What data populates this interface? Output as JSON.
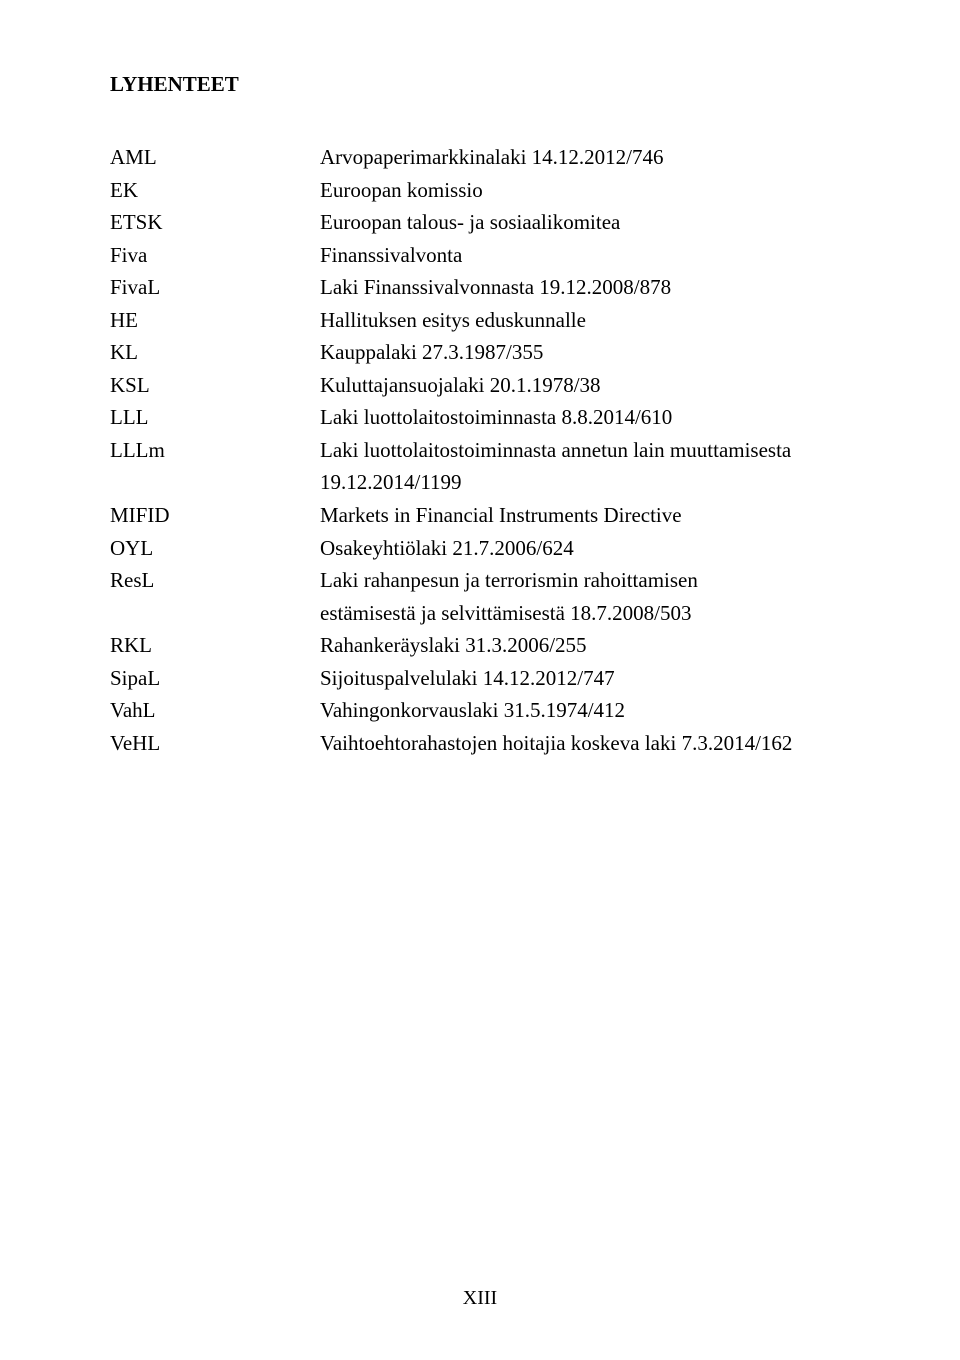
{
  "heading": "LYHENTEET",
  "page_number": "XIII",
  "entries": [
    {
      "abbr": "AML",
      "lines": [
        "Arvopaperimarkkinalaki 14.12.2012/746"
      ]
    },
    {
      "abbr": "EK",
      "lines": [
        "Euroopan komissio"
      ]
    },
    {
      "abbr": "ETSK",
      "lines": [
        "Euroopan talous- ja sosiaalikomitea"
      ]
    },
    {
      "abbr": "Fiva",
      "lines": [
        "Finanssivalvonta"
      ]
    },
    {
      "abbr": "FivaL",
      "lines": [
        "Laki Finanssivalvonnasta 19.12.2008/878"
      ]
    },
    {
      "abbr": "HE",
      "lines": [
        "Hallituksen esitys eduskunnalle"
      ]
    },
    {
      "abbr": "KL",
      "lines": [
        "Kauppalaki 27.3.1987/355"
      ]
    },
    {
      "abbr": "KSL",
      "lines": [
        "Kuluttajansuojalaki 20.1.1978/38"
      ]
    },
    {
      "abbr": "LLL",
      "lines": [
        "Laki luottolaitostoiminnasta 8.8.2014/610"
      ]
    },
    {
      "abbr": "LLLm",
      "lines": [
        "Laki luottolaitostoiminnasta annetun lain muuttamisesta",
        "19.12.2014/1199"
      ]
    },
    {
      "abbr": "MIFID",
      "lines": [
        "Markets in Financial Instruments Directive"
      ]
    },
    {
      "abbr": "OYL",
      "lines": [
        "Osakeyhtiölaki 21.7.2006/624"
      ]
    },
    {
      "abbr": "ResL",
      "lines": [
        "Laki rahanpesun ja terrorismin rahoittamisen",
        "estämisestä ja selvittämisestä 18.7.2008/503"
      ]
    },
    {
      "abbr": "RKL",
      "lines": [
        "Rahankeräyslaki 31.3.2006/255"
      ]
    },
    {
      "abbr": "SipaL",
      "lines": [
        "Sijoituspalvelulaki 14.12.2012/747"
      ]
    },
    {
      "abbr": "VahL",
      "lines": [
        "Vahingonkorvauslaki 31.5.1974/412"
      ]
    },
    {
      "abbr": "VeHL",
      "lines": [
        "Vaihtoehtorahastojen hoitajia koskeva laki 7.3.2014/162"
      ]
    }
  ]
}
